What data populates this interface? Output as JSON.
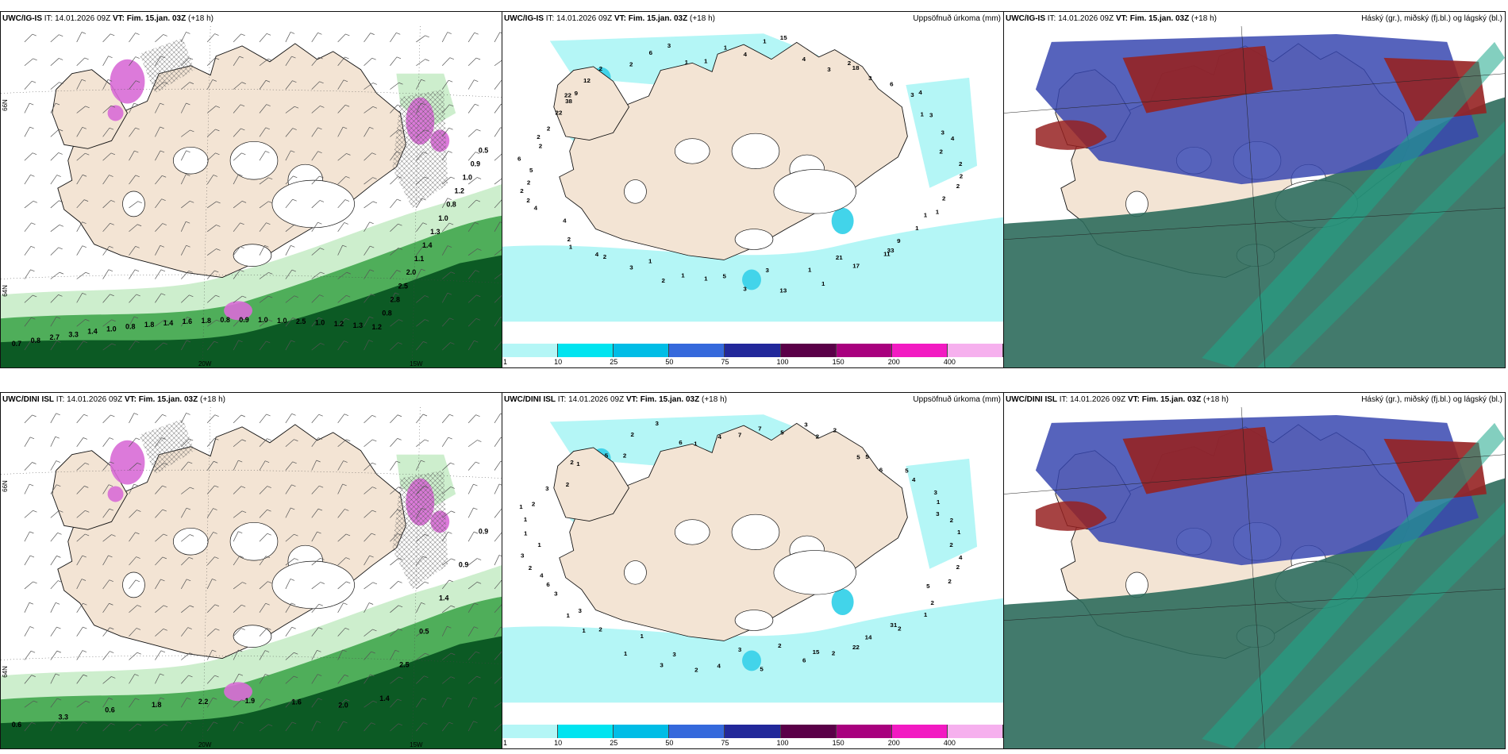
{
  "colors": {
    "land": "#f3e4d4",
    "precip_light": "#b4f6f6",
    "precip_mid": "#42d4ea",
    "snow_green_light": "#cdeecd",
    "snow_green": "#4fae5a",
    "snow_green_dark": "#0c5a24",
    "purple": "#d86bd6",
    "cloud_high": "#962222",
    "cloud_mid": "#3848b0",
    "cloud_low": "#2d6b5c",
    "cloud_teal": "#1ea88a"
  },
  "colorbar": [
    {
      "label": "1",
      "color": "#b4f6f6"
    },
    {
      "label": "10",
      "color": "#00e4f0"
    },
    {
      "label": "25",
      "color": "#00bde6"
    },
    {
      "label": "50",
      "color": "#3569dc"
    },
    {
      "label": "75",
      "color": "#22289a"
    },
    {
      "label": "100",
      "color": "#5a0048"
    },
    {
      "label": "150",
      "color": "#a8007e"
    },
    {
      "label": "200",
      "color": "#f21ac2"
    },
    {
      "label": "400",
      "color": "#f6b0ee"
    }
  ],
  "panels": [
    {
      "id": "p-ig-wind",
      "model": "UWC/IG-IS",
      "it": "IT: 14.01.2026 09Z",
      "vt": "VT: Fim. 15.jan. 03Z",
      "lead": "(+18 h)",
      "right_title": "",
      "type": "wind",
      "axis_labels": [
        "66N",
        "64N",
        "20W",
        "15W"
      ],
      "values": [
        "0.7",
        "0.8",
        "2.7",
        "3.3",
        "1.4",
        "1.0",
        "0.8",
        "1.8",
        "1.4",
        "1.6",
        "1.8",
        "0.8",
        "0.9",
        "1.0",
        "1.0",
        "2.5",
        "1.0",
        "1.2",
        "1.3",
        "1.2",
        "0.8",
        "2.8",
        "2.5",
        "2.0",
        "1.1",
        "1.4",
        "1.3",
        "1.0",
        "0.8",
        "1.2",
        "1.0",
        "0.9",
        "0.5"
      ]
    },
    {
      "id": "p-ig-precip",
      "model": "UWC/IG-IS",
      "it": "IT: 14.01.2026 09Z",
      "vt": "VT: Fim. 15.jan. 03Z",
      "lead": "(+18 h)",
      "right_title": "Uppsöfnuð úrkoma (mm)",
      "type": "precip",
      "values": [
        "2",
        "2",
        "2",
        "2",
        "1",
        "1",
        "1",
        "9",
        "33",
        "11",
        "17",
        "21",
        "1",
        "1",
        "13",
        "3",
        "3",
        "5",
        "1",
        "1",
        "2",
        "1",
        "3",
        "2",
        "4",
        "1",
        "2",
        "4",
        "4",
        "2",
        "2",
        "2",
        "5",
        "6",
        "2",
        "2",
        "2",
        "22",
        "38",
        "22",
        "9",
        "12",
        "2",
        "2",
        "6",
        "3",
        "1",
        "1",
        "1",
        "4",
        "1",
        "15",
        "4",
        "3",
        "2",
        "18",
        "3",
        "6",
        "3",
        "4",
        "1",
        "3",
        "3",
        "4",
        "2"
      ]
    },
    {
      "id": "p-ig-cloud",
      "model": "UWC/IG-IS",
      "it": "IT: 14.01.2026 09Z",
      "vt": "VT: Fim. 15.jan. 03Z",
      "lead": "(+18 h)",
      "right_title": "Háský (gr.), miðský (fj.bl.) og lágský (bl.)",
      "type": "cloud"
    },
    {
      "id": "p-dini-wind",
      "model": "UWC/DINI ISL",
      "it": "IT: 14.01.2026 09Z",
      "vt": "VT: Fim. 15.jan. 03Z",
      "lead": "(+18 h)",
      "right_title": "",
      "type": "wind",
      "axis_labels": [
        "66N",
        "64N",
        "20W",
        "15W"
      ],
      "values": [
        "0.6",
        "3.3",
        "0.6",
        "1.8",
        "2.2",
        "1.9",
        "1.6",
        "2.0",
        "1.4",
        "2.5",
        "0.5",
        "1.4",
        "0.9",
        "0.9"
      ]
    },
    {
      "id": "p-dini-precip",
      "model": "UWC/DINI ISL",
      "it": "IT: 14.01.2026 09Z",
      "vt": "VT: Fim. 15.jan. 03Z",
      "lead": "(+18 h)",
      "right_title": "Uppsöfnuð úrkoma (mm)",
      "type": "precip",
      "values": [
        "2",
        "4",
        "2",
        "2",
        "5",
        "2",
        "1",
        "2",
        "31",
        "14",
        "22",
        "2",
        "15",
        "6",
        "2",
        "5",
        "3",
        "4",
        "2",
        "3",
        "3",
        "1",
        "1",
        "2",
        "1",
        "3",
        "1",
        "3",
        "6",
        "4",
        "2",
        "3",
        "1",
        "1",
        "1",
        "1",
        "2",
        "3",
        "2",
        "2",
        "1",
        "5",
        "2",
        "2",
        "3",
        "6",
        "1",
        "4",
        "7",
        "7",
        "5",
        "3",
        "2",
        "2",
        "5",
        "5",
        "6",
        "5",
        "4",
        "3",
        "1",
        "3",
        "2",
        "1"
      ]
    },
    {
      "id": "p-dini-cloud",
      "model": "UWC/DINI ISL",
      "it": "IT: 14.01.2026 09Z",
      "vt": "VT: Fim. 15.jan. 03Z",
      "lead": "(+18 h)",
      "right_title": "Háský (gr.), miðský (fj.bl.) og lágský (bl.)",
      "type": "cloud"
    }
  ]
}
